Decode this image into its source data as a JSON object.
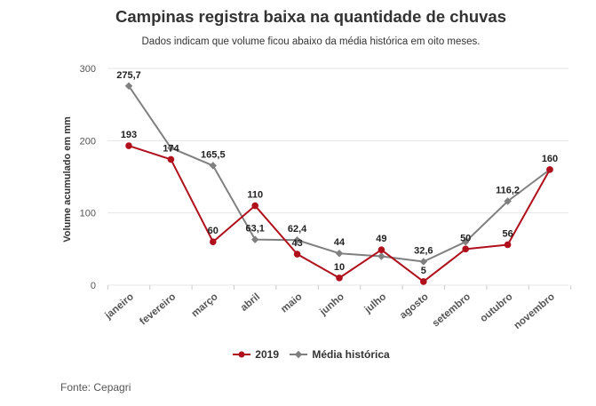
{
  "title": "Campinas registra baixa na quantidade de chuvas",
  "subtitle": "Dados indicam que volume ficou abaixo da média histórica em oito meses.",
  "source": "Fonte: Cepagri",
  "legend": {
    "series_1": "2019",
    "series_2": "Média histórica"
  },
  "colors": {
    "series_1": "#b0101c",
    "series_2": "#808080",
    "grid": "#e6e6e6",
    "axis_text": "#555555"
  },
  "chart_data": {
    "type": "line",
    "title": "Campinas registra baixa na quantidade de chuvas",
    "subtitle": "Dados indicam que volume ficou abaixo da média histórica em oito meses.",
    "xlabel": "",
    "ylabel": "Volume acumulado em mm",
    "ylim": [
      0,
      300
    ],
    "yticks": [
      0,
      100,
      200,
      300
    ],
    "grid": true,
    "legend_position": "bottom",
    "categories": [
      "janeiro",
      "fevereiro",
      "março",
      "abril",
      "maio",
      "junho",
      "julho",
      "agosto",
      "setembro",
      "outubro",
      "novembro"
    ],
    "series": [
      {
        "name": "2019",
        "values": [
          193,
          174,
          60,
          110,
          43,
          10,
          49,
          5,
          50,
          56,
          160
        ],
        "labels": [
          "193",
          "174",
          "60",
          "110",
          "43",
          "10",
          "49",
          "5",
          "50",
          "56",
          "160"
        ]
      },
      {
        "name": "Média histórica",
        "values": [
          275.7,
          190,
          165.5,
          63.1,
          62.4,
          44,
          40,
          32.6,
          60,
          116.2,
          160
        ],
        "labels": [
          "275,7",
          "",
          "165,5",
          "63,1",
          "62,4",
          "44",
          "",
          "32,6",
          "",
          "116,2",
          ""
        ]
      }
    ]
  }
}
